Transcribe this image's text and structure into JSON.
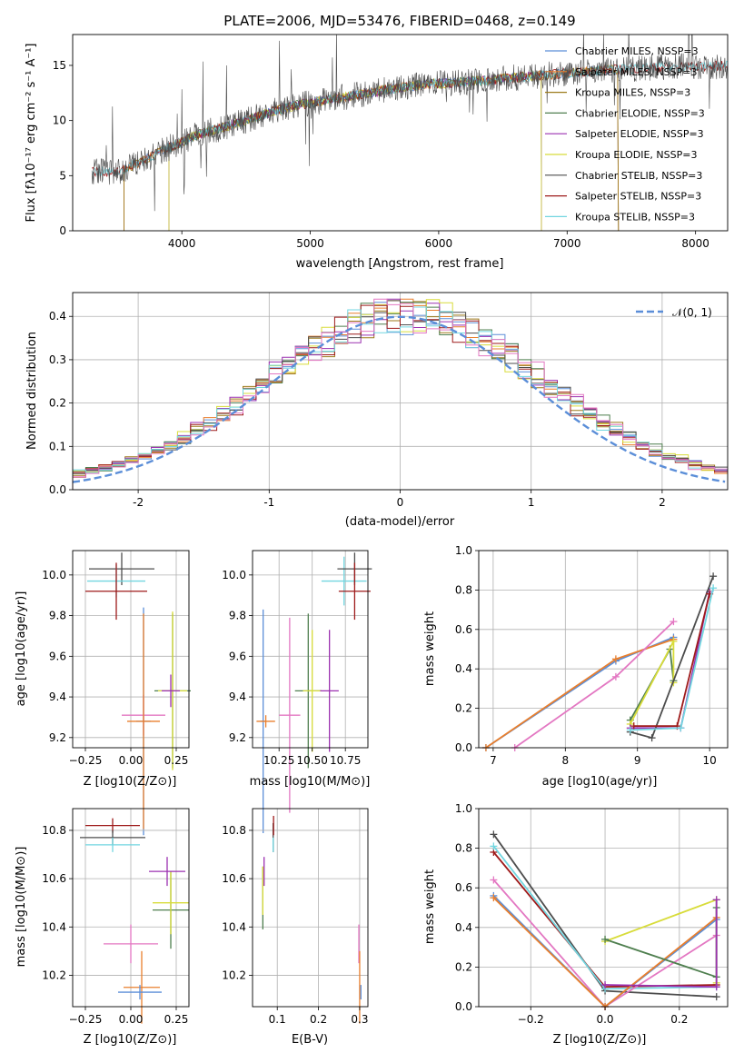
{
  "chart_data": [
    {
      "type": "line",
      "title": "PLATE=2006, MJD=53476, FIBERID=0468, z=0.149",
      "xlabel": "wavelength [Angstrom, rest frame]",
      "ylabel": "Flux [fλ10⁻¹⁷ erg cm⁻² s⁻¹ A⁻¹]",
      "xlim": [
        3150,
        8250
      ],
      "ylim": [
        0,
        17.8
      ],
      "xticks": [
        4000,
        5000,
        6000,
        7000,
        8000
      ],
      "yticks": [
        0,
        5,
        10,
        15
      ],
      "legend": "top-right",
      "series": [
        {
          "name": "Chabrier MILES, NSSP=3",
          "color": "#5b8ed8",
          "range": [
            3550,
            7400
          ]
        },
        {
          "name": "Salpeter MILES, NSSP=3",
          "color": "#e97f2d",
          "range": [
            3550,
            7400
          ]
        },
        {
          "name": "Kroupa MILES, NSSP=3",
          "color": "#9c7a1a",
          "range": [
            3550,
            7400
          ]
        },
        {
          "name": "Chabrier ELODIE, NSSP=3",
          "color": "#4f7f4f",
          "range": [
            3900,
            6800
          ]
        },
        {
          "name": "Salpeter ELODIE, NSSP=3",
          "color": "#9b30b0",
          "range": [
            3900,
            6800
          ]
        },
        {
          "name": "Kroupa ELODIE, NSSP=3",
          "color": "#d8dc3a",
          "range": [
            3900,
            6800
          ]
        },
        {
          "name": "Chabrier STELIB, NSSP=3",
          "color": "#4d4d4d",
          "range": [
            3300,
            8250
          ]
        },
        {
          "name": "Salpeter STELIB, NSSP=3",
          "color": "#9e1a1a",
          "range": [
            3300,
            8250
          ]
        },
        {
          "name": "Kroupa STELIB, NSSP=3",
          "color": "#72d6e0",
          "range": [
            3300,
            8250
          ]
        }
      ],
      "envelope": {
        "x": [
          3300,
          3500,
          3650,
          3800,
          3950,
          4100,
          4300,
          4500,
          4700,
          4900,
          5100,
          5300,
          5500,
          5700,
          5900,
          6100,
          6300,
          6500,
          6700,
          6900,
          7100,
          7300,
          7500,
          7700,
          7900,
          8100,
          8250
        ],
        "y": [
          5.4,
          5.3,
          6.1,
          7.0,
          7.8,
          8.6,
          9.3,
          10.0,
          10.8,
          11.4,
          11.8,
          12.2,
          12.6,
          13.0,
          13.3,
          13.4,
          13.6,
          13.8,
          14.0,
          14.2,
          14.4,
          14.6,
          14.7,
          14.8,
          14.9,
          14.9,
          15.0
        ]
      }
    },
    {
      "type": "histogram",
      "xlabel": "(data-model)/error",
      "ylabel": "Normed distribution",
      "xlim": [
        -2.5,
        2.5
      ],
      "ylim": [
        0,
        0.455
      ],
      "xticks": [
        -2,
        -1,
        0,
        1,
        2
      ],
      "yticks": [
        0.0,
        0.1,
        0.2,
        0.3,
        0.4
      ],
      "legend": "top-right",
      "reference_curve": {
        "name": "𝒩(0, 1)",
        "color": "#5b8ed8",
        "mean": 0,
        "sd": 1
      },
      "bin_width": 0.1
    },
    {
      "type": "errorbar",
      "xlabel": "Z [log10(Z/Z⊙)]",
      "ylabel": "age  [log10(age/yr)]",
      "xlim": [
        -0.32,
        0.32
      ],
      "ylim": [
        9.15,
        10.12
      ],
      "xticks": [
        -0.25,
        0.0,
        0.25
      ],
      "xticklabels": [
        "−0.25",
        "0.00",
        "0.25"
      ],
      "yticks": [
        9.2,
        9.4,
        9.6,
        9.8,
        10.0
      ],
      "points": [
        {
          "x": -0.05,
          "xerr": 0.18,
          "y": 10.03,
          "yerr": 0.08,
          "color": "#4d4d4d"
        },
        {
          "x": -0.08,
          "xerr": 0.16,
          "y": 9.97,
          "yerr": 0.08,
          "color": "#72d6e0"
        },
        {
          "x": -0.08,
          "xerr": 0.17,
          "y": 9.92,
          "yerr": 0.14,
          "color": "#9e1a1a"
        },
        {
          "x": 0.07,
          "xerr": 0.04,
          "y": 9.28,
          "yerr": 0.56,
          "color": "#5b8ed8"
        },
        {
          "x": 0.07,
          "xerr": 0.12,
          "y": 9.31,
          "yerr": 0.1,
          "color": "#e377c2"
        },
        {
          "x": 0.07,
          "xerr": 0.09,
          "y": 9.28,
          "yerr": 0.53,
          "color": "#e97f2d"
        },
        {
          "x": 0.23,
          "xerr": 0.1,
          "y": 9.43,
          "yerr": 0.38,
          "color": "#4f7f4f"
        },
        {
          "x": 0.23,
          "xerr": 0.08,
          "y": 9.43,
          "yerr": 0.39,
          "color": "#d8dc3a"
        },
        {
          "x": 0.22,
          "xerr": 0.05,
          "y": 9.43,
          "yerr": 0.08,
          "color": "#9b30b0"
        }
      ]
    },
    {
      "type": "errorbar",
      "xlabel": "mass [log10(M/M⊙)]",
      "xlim": [
        10.05,
        10.92
      ],
      "ylim": [
        9.15,
        10.12
      ],
      "xticks": [
        10.25,
        10.5,
        10.75
      ],
      "xticklabels": [
        "10.25",
        "10.50",
        "10.75"
      ],
      "yticks": [
        9.2,
        9.4,
        9.6,
        9.8,
        10.0
      ],
      "points": [
        {
          "x": 10.13,
          "xerr": 0.02,
          "y": 9.28,
          "yerr": 0.55,
          "color": "#5b8ed8"
        },
        {
          "x": 10.15,
          "xerr": 0.07,
          "y": 9.28,
          "yerr": 0.03,
          "color": "#e97f2d"
        },
        {
          "x": 10.33,
          "xerr": 0.08,
          "y": 9.31,
          "yerr": 0.48,
          "color": "#e377c2"
        },
        {
          "x": 10.47,
          "xerr": 0.1,
          "y": 9.43,
          "yerr": 0.38,
          "color": "#4f7f4f"
        },
        {
          "x": 10.5,
          "xerr": 0.07,
          "y": 9.43,
          "yerr": 0.3,
          "color": "#d8dc3a"
        },
        {
          "x": 10.63,
          "xerr": 0.07,
          "y": 9.43,
          "yerr": 0.3,
          "color": "#9b30b0"
        },
        {
          "x": 10.74,
          "xerr": 0.17,
          "y": 9.97,
          "yerr": 0.12,
          "color": "#72d6e0"
        },
        {
          "x": 10.82,
          "xerr": 0.13,
          "y": 10.03,
          "yerr": 0.08,
          "color": "#4d4d4d"
        },
        {
          "x": 10.82,
          "xerr": 0.12,
          "y": 9.92,
          "yerr": 0.14,
          "color": "#9e1a1a"
        }
      ]
    },
    {
      "type": "line",
      "xlabel": "age  [log10(age/yr)]",
      "ylabel": "mass weight",
      "xlim": [
        6.8,
        10.25
      ],
      "ylim": [
        0.0,
        1.0
      ],
      "xticks": [
        7,
        8,
        9,
        10
      ],
      "yticks": [
        0.0,
        0.2,
        0.4,
        0.6,
        0.8,
        1.0
      ],
      "series": [
        {
          "color": "#5b8ed8",
          "x": [
            6.9,
            8.7,
            9.5
          ],
          "y": [
            0.0,
            0.44,
            0.56
          ]
        },
        {
          "color": "#e97f2d",
          "x": [
            6.9,
            8.7,
            9.5
          ],
          "y": [
            0.0,
            0.45,
            0.55
          ]
        },
        {
          "color": "#e377c2",
          "x": [
            7.3,
            8.7,
            9.5
          ],
          "y": [
            0.0,
            0.36,
            0.64
          ]
        },
        {
          "color": "#4f7f4f",
          "x": [
            8.9,
            9.45,
            9.5
          ],
          "y": [
            0.14,
            0.5,
            0.34
          ]
        },
        {
          "color": "#d8dc3a",
          "x": [
            8.9,
            9.5,
            9.5
          ],
          "y": [
            0.12,
            0.54,
            0.33
          ]
        },
        {
          "color": "#9b30b0",
          "x": [
            8.9,
            9.6,
            10.0
          ],
          "y": [
            0.1,
            0.1,
            0.79
          ]
        },
        {
          "color": "#4d4d4d",
          "x": [
            8.9,
            9.2,
            10.05
          ],
          "y": [
            0.08,
            0.05,
            0.87
          ]
        },
        {
          "color": "#9e1a1a",
          "x": [
            8.95,
            9.55,
            10.0
          ],
          "y": [
            0.11,
            0.11,
            0.78
          ]
        },
        {
          "color": "#72d6e0",
          "x": [
            8.9,
            9.6,
            10.05
          ],
          "y": [
            0.09,
            0.1,
            0.81
          ]
        }
      ]
    },
    {
      "type": "errorbar",
      "xlabel": "Z [log10(Z/Z⊙)]",
      "ylabel": "mass [log10(M/M⊙)]",
      "xlim": [
        -0.32,
        0.32
      ],
      "ylim": [
        10.07,
        10.89
      ],
      "xticks": [
        -0.25,
        0.0,
        0.25
      ],
      "xticklabels": [
        "−0.25",
        "0.00",
        "0.25"
      ],
      "yticks": [
        10.2,
        10.4,
        10.6,
        10.8
      ],
      "points": [
        {
          "x": -0.1,
          "xerr": 0.15,
          "y": 10.82,
          "yerr": 0.03,
          "color": "#9e1a1a"
        },
        {
          "x": -0.1,
          "xerr": 0.18,
          "y": 10.77,
          "yerr": 0.03,
          "color": "#4d4d4d"
        },
        {
          "x": -0.1,
          "xerr": 0.15,
          "y": 10.74,
          "yerr": 0.03,
          "color": "#72d6e0"
        },
        {
          "x": 0.22,
          "xerr": 0.1,
          "y": 10.47,
          "yerr": 0.16,
          "color": "#4f7f4f"
        },
        {
          "x": 0.22,
          "xerr": 0.1,
          "y": 10.5,
          "yerr": 0.13,
          "color": "#d8dc3a"
        },
        {
          "x": 0.2,
          "xerr": 0.1,
          "y": 10.63,
          "yerr": 0.06,
          "color": "#9b30b0"
        },
        {
          "x": 0.0,
          "xerr": 0.15,
          "y": 10.33,
          "yerr": 0.08,
          "color": "#e377c2"
        },
        {
          "x": 0.06,
          "xerr": 0.1,
          "y": 10.15,
          "yerr": 0.15,
          "color": "#e97f2d"
        },
        {
          "x": 0.05,
          "xerr": 0.12,
          "y": 10.13,
          "yerr": 0.03,
          "color": "#5b8ed8"
        }
      ]
    },
    {
      "type": "errorbar",
      "xlabel": "E(B-V)",
      "xlim": [
        0.04,
        0.32
      ],
      "ylim": [
        10.07,
        10.89
      ],
      "xticks": [
        0.1,
        0.2,
        0.3
      ],
      "xticklabels": [
        "0.1",
        "0.2",
        "0.3"
      ],
      "yticks": [
        10.2,
        10.4,
        10.6,
        10.8
      ],
      "points": [
        {
          "x": 0.065,
          "xerr": 0.0,
          "y": 10.52,
          "yerr": 0.13,
          "color": "#4f7f4f"
        },
        {
          "x": 0.065,
          "xerr": 0.0,
          "y": 10.55,
          "yerr": 0.1,
          "color": "#d8dc3a"
        },
        {
          "x": 0.068,
          "xerr": 0.0,
          "y": 10.63,
          "yerr": 0.06,
          "color": "#9b30b0"
        },
        {
          "x": 0.09,
          "xerr": 0.0,
          "y": 10.77,
          "yerr": 0.06,
          "color": "#4d4d4d"
        },
        {
          "x": 0.09,
          "xerr": 0.0,
          "y": 10.74,
          "yerr": 0.03,
          "color": "#72d6e0"
        },
        {
          "x": 0.091,
          "xerr": 0.0,
          "y": 10.82,
          "yerr": 0.04,
          "color": "#9e1a1a"
        },
        {
          "x": 0.298,
          "xerr": 0.0,
          "y": 10.33,
          "yerr": 0.08,
          "color": "#e377c2"
        },
        {
          "x": 0.3,
          "xerr": 0.0,
          "y": 10.15,
          "yerr": 0.15,
          "color": "#e97f2d"
        },
        {
          "x": 0.303,
          "xerr": 0.0,
          "y": 10.13,
          "yerr": 0.03,
          "color": "#5b8ed8"
        }
      ]
    },
    {
      "type": "line",
      "xlabel": "Z [log10(Z/Z⊙)]",
      "ylabel": "mass weight",
      "xlim": [
        -0.34,
        0.33
      ],
      "ylim": [
        0.0,
        1.0
      ],
      "xticks": [
        -0.2,
        0.0,
        0.2
      ],
      "xticklabels": [
        "−0.2",
        "0.0",
        "0.2"
      ],
      "yticks": [
        0.0,
        0.2,
        0.4,
        0.6,
        0.8,
        1.0
      ],
      "series": [
        {
          "color": "#4d4d4d",
          "x": [
            -0.3,
            0.0,
            0.3
          ],
          "y": [
            0.87,
            0.08,
            0.05
          ]
        },
        {
          "color": "#9e1a1a",
          "x": [
            -0.3,
            0.0,
            0.3
          ],
          "y": [
            0.78,
            0.1,
            0.11
          ]
        },
        {
          "color": "#72d6e0",
          "x": [
            -0.3,
            0.0,
            0.3,
            0.3
          ],
          "y": [
            0.81,
            0.09,
            0.1,
            0.54
          ]
        },
        {
          "color": "#e377c2",
          "x": [
            -0.3,
            0.0,
            0.3
          ],
          "y": [
            0.64,
            0.0,
            0.36
          ]
        },
        {
          "color": "#5b8ed8",
          "x": [
            -0.3,
            0.0,
            0.3
          ],
          "y": [
            0.56,
            0.0,
            0.44
          ]
        },
        {
          "color": "#e97f2d",
          "x": [
            -0.3,
            0.0,
            0.3
          ],
          "y": [
            0.55,
            0.0,
            0.45
          ]
        },
        {
          "color": "#d8dc3a",
          "x": [
            0.0,
            0.3,
            0.3
          ],
          "y": [
            0.33,
            0.54,
            0.12
          ]
        },
        {
          "color": "#4f7f4f",
          "x": [
            0.0,
            0.3,
            0.3
          ],
          "y": [
            0.34,
            0.15,
            0.5
          ]
        },
        {
          "color": "#9b30b0",
          "x": [
            0.0,
            0.3,
            0.3
          ],
          "y": [
            0.11,
            0.1,
            0.54
          ]
        }
      ]
    }
  ]
}
